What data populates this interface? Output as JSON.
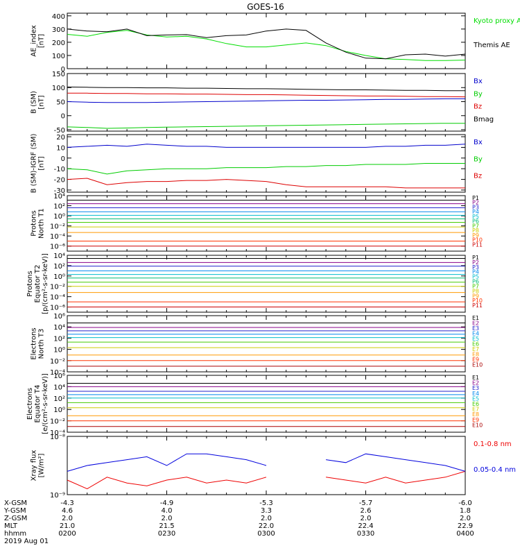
{
  "title": "GOES-16",
  "chart_data": [
    {
      "type": "line",
      "ylabel": [
        "AE_index",
        "[nT]"
      ],
      "yticks": [
        0,
        100,
        200,
        300,
        400
      ],
      "ylim": [
        0,
        420
      ],
      "x": [
        0,
        0.1,
        0.2,
        0.3,
        0.4,
        0.5,
        0.6,
        0.7,
        0.8,
        0.9,
        1.0,
        1.1,
        1.2,
        1.3,
        1.4,
        1.5,
        1.6,
        1.7,
        1.8,
        1.9,
        2.0
      ],
      "series": [
        {
          "name": "Kyoto proxy AE",
          "color": "#00dd00",
          "values": [
            260,
            245,
            275,
            290,
            255,
            240,
            245,
            225,
            190,
            165,
            165,
            180,
            195,
            175,
            130,
            100,
            75,
            70,
            62,
            62,
            65
          ]
        },
        {
          "name": "Themis AE",
          "color": "#000000",
          "values": [
            300,
            285,
            280,
            300,
            250,
            255,
            258,
            235,
            250,
            255,
            285,
            300,
            290,
            195,
            125,
            80,
            75,
            105,
            110,
            95,
            110
          ]
        }
      ]
    },
    {
      "type": "line",
      "ylabel": [
        "B (SM)",
        "[nT]"
      ],
      "yticks": [
        -50,
        0,
        50,
        100,
        150
      ],
      "ylim": [
        -55,
        150
      ],
      "x": [
        0,
        0.1,
        0.2,
        0.3,
        0.4,
        0.5,
        0.6,
        0.7,
        0.8,
        0.9,
        1.0,
        1.1,
        1.2,
        1.3,
        1.4,
        1.5,
        1.6,
        1.7,
        1.8,
        1.9,
        2.0
      ],
      "series": [
        {
          "name": "Bx",
          "color": "#0000cc",
          "values": [
            50,
            48,
            47,
            47,
            47,
            48,
            49,
            50,
            51,
            52,
            53,
            54,
            55,
            55,
            56,
            57,
            58,
            58,
            59,
            60,
            60
          ]
        },
        {
          "name": "By",
          "color": "#00cc00",
          "values": [
            -40,
            -42,
            -45,
            -44,
            -42,
            -41,
            -40,
            -39,
            -38,
            -37,
            -36,
            -35,
            -34,
            -33,
            -32,
            -31,
            -30,
            -29,
            -28,
            -27,
            -27
          ]
        },
        {
          "name": "Bz",
          "color": "#dd0000",
          "values": [
            80,
            80,
            79,
            79,
            78,
            78,
            77,
            77,
            76,
            75,
            75,
            74,
            73,
            72,
            71,
            70,
            70,
            69,
            68,
            68,
            67
          ]
        },
        {
          "name": "Bmag",
          "color": "#000000",
          "values": [
            102,
            101,
            100,
            100,
            99,
            99,
            98,
            98,
            97,
            96,
            96,
            95,
            94,
            93,
            92,
            92,
            91,
            90,
            90,
            89,
            89
          ]
        }
      ]
    },
    {
      "type": "line",
      "ylabel": [
        "B (SM)-IGRF (SM)",
        "[nT]"
      ],
      "yticks": [
        -30,
        -20,
        -10,
        0,
        10,
        20
      ],
      "ylim": [
        -32,
        22
      ],
      "x": [
        0,
        0.1,
        0.2,
        0.3,
        0.4,
        0.5,
        0.6,
        0.7,
        0.8,
        0.9,
        1.0,
        1.1,
        1.2,
        1.3,
        1.4,
        1.5,
        1.6,
        1.7,
        1.8,
        1.9,
        2.0
      ],
      "series": [
        {
          "name": "Bx",
          "color": "#0000cc",
          "values": [
            10,
            11,
            12,
            11,
            13,
            12,
            11,
            11,
            10,
            10,
            10,
            10,
            10,
            10,
            10,
            10,
            11,
            11,
            12,
            12,
            13
          ]
        },
        {
          "name": "By",
          "color": "#00cc00",
          "values": [
            -10,
            -11,
            -15,
            -12,
            -11,
            -10,
            -10,
            -10,
            -9,
            -9,
            -9,
            -8,
            -8,
            -7,
            -7,
            -6,
            -6,
            -6,
            -5,
            -5,
            -5
          ]
        },
        {
          "name": "Bz",
          "color": "#dd0000",
          "values": [
            -20,
            -19,
            -25,
            -23,
            -22,
            -22,
            -21,
            -21,
            -20,
            -21,
            -22,
            -25,
            -27,
            -27,
            -27,
            -27,
            -27,
            -28,
            -28,
            -28,
            -28
          ]
        }
      ]
    },
    {
      "type": "line",
      "ylog": true,
      "ylabel": [
        "Protons",
        "North T1"
      ],
      "yticks": [
        -6,
        -4,
        -2,
        0,
        2,
        4
      ],
      "ylim_log10": [
        -7,
        4
      ],
      "channels": [
        {
          "name": "P1",
          "color": "#000000",
          "log10": 3.1
        },
        {
          "name": "P2",
          "color": "#880088",
          "log10": 2.4
        },
        {
          "name": "P3",
          "color": "#2222cc",
          "log10": 1.6
        },
        {
          "name": "P4",
          "color": "#0088ee",
          "log10": 0.8
        },
        {
          "name": "P5",
          "color": "#00bbcc",
          "log10": 0.1
        },
        {
          "name": "P6",
          "color": "#00bb77",
          "log10": -0.6
        },
        {
          "name": "P7",
          "color": "#44cc00",
          "log10": -1.3
        },
        {
          "name": "P8",
          "color": "#cccc00",
          "log10": -2.2
        },
        {
          "name": "P9",
          "color": "#ff9900",
          "log10": -3.3
        },
        {
          "name": "P10",
          "color": "#ff3300",
          "log10": -5.0
        },
        {
          "name": "P11",
          "color": "#cc0000",
          "log10": -6.0
        }
      ]
    },
    {
      "type": "line",
      "ylog": true,
      "ylabel": [
        "Protons",
        "Equator T2",
        "[p/(cm²-s-sr-keV)]"
      ],
      "yticks": [
        -6,
        -4,
        -2,
        0,
        2,
        4
      ],
      "ylim_log10": [
        -7,
        4
      ],
      "channels": [
        {
          "name": "P1",
          "color": "#000000",
          "log10": 3.4
        },
        {
          "name": "P2",
          "color": "#880088",
          "log10": 2.6
        },
        {
          "name": "P3",
          "color": "#2222cc",
          "log10": 1.9
        },
        {
          "name": "P4",
          "color": "#0088ee",
          "log10": 1.0
        },
        {
          "name": "P5",
          "color": "#00bbcc",
          "log10": 0.3
        },
        {
          "name": "P6",
          "color": "#00bb77",
          "log10": -0.4
        },
        {
          "name": "P7",
          "color": "#44cc00",
          "log10": -1.2
        },
        {
          "name": "P8",
          "color": "#cccc00",
          "log10": -2.0
        },
        {
          "name": "P9",
          "color": "#ff9900",
          "log10": -3.2
        },
        {
          "name": "P10",
          "color": "#ff3300",
          "log10": -5.0
        },
        {
          "name": "P11",
          "color": "#cc0000",
          "log10": -6.0
        }
      ]
    },
    {
      "type": "line",
      "ylog": true,
      "ylabel": [
        "Electrons",
        "North T3"
      ],
      "yticks": [
        -4,
        -2,
        0,
        2,
        4,
        6
      ],
      "ylim_log10": [
        -4,
        6
      ],
      "channels": [
        {
          "name": "E1",
          "color": "#000000",
          "log10": 4.7
        },
        {
          "name": "E2",
          "color": "#880088",
          "log10": 3.9
        },
        {
          "name": "E3",
          "color": "#2222cc",
          "log10": 3.3
        },
        {
          "name": "E4",
          "color": "#0088ee",
          "log10": 2.7
        },
        {
          "name": "E5",
          "color": "#00bbcc",
          "log10": 2.1
        },
        {
          "name": "E6",
          "color": "#44cc00",
          "log10": 1.3
        },
        {
          "name": "E7",
          "color": "#cccc00",
          "log10": 0.3
        },
        {
          "name": "E8",
          "color": "#ff9900",
          "log10": -1.0
        },
        {
          "name": "E9",
          "color": "#ff3300",
          "log10": -2.0
        },
        {
          "name": "E10",
          "color": "#aa0000",
          "log10": -3.0
        }
      ]
    },
    {
      "type": "line",
      "ylog": true,
      "ylabel": [
        "Electrons",
        "Equator T4",
        "[e/(cm²-s-sr-keV)]"
      ],
      "yticks": [
        -4,
        -2,
        0,
        2,
        4,
        6
      ],
      "ylim_log10": [
        -4,
        6
      ],
      "channels": [
        {
          "name": "E1",
          "color": "#000000",
          "log10": 4.6
        },
        {
          "name": "E2",
          "color": "#880088",
          "log10": 4.0
        },
        {
          "name": "E3",
          "color": "#2222cc",
          "log10": 3.2
        },
        {
          "name": "E4",
          "color": "#0088ee",
          "log10": 2.6
        },
        {
          "name": "E5",
          "color": "#00bbcc",
          "log10": 2.0
        },
        {
          "name": "E6",
          "color": "#44cc00",
          "log10": 1.2
        },
        {
          "name": "E7",
          "color": "#cccc00",
          "log10": 0.3
        },
        {
          "name": "E8",
          "color": "#ff9900",
          "log10": -1.1
        },
        {
          "name": "E9",
          "color": "#ff3300",
          "log10": -2.0
        },
        {
          "name": "E10",
          "color": "#aa0000",
          "log10": -3.0
        }
      ]
    },
    {
      "type": "line",
      "ylog": true,
      "ylabel": [
        "Xray flux",
        "[W/m²]"
      ],
      "yticks": [
        -9,
        -8
      ],
      "ylim_log10": [
        -9,
        -8
      ],
      "x": [
        0,
        0.1,
        0.2,
        0.3,
        0.4,
        0.5,
        0.6,
        0.7,
        0.8,
        0.9,
        1.0,
        1.1,
        1.2,
        1.3,
        1.4,
        1.5,
        1.6,
        1.7,
        1.8,
        1.9,
        2.0
      ],
      "series": [
        {
          "name": "0.1-0.8 nm",
          "color": "#ee0000",
          "log10": [
            -8.75,
            -8.9,
            -8.7,
            -8.8,
            -8.85,
            -8.75,
            -8.7,
            -8.8,
            -8.75,
            -8.8,
            -8.7,
            null,
            null,
            -8.7,
            -8.75,
            -8.8,
            -8.7,
            -8.8,
            -8.75,
            -8.7,
            -8.6
          ]
        },
        {
          "name": "0.05-0.4 nm",
          "color": "#0000dd",
          "log10": [
            -8.6,
            -8.5,
            -8.45,
            -8.4,
            -8.35,
            -8.5,
            -8.3,
            -8.3,
            -8.35,
            -8.4,
            -8.5,
            null,
            null,
            -8.4,
            -8.45,
            -8.3,
            -8.35,
            -8.4,
            -8.45,
            -8.5,
            -8.6
          ]
        }
      ]
    }
  ],
  "x_axis": {
    "rows": [
      {
        "label": "X-GSM",
        "values": [
          "-4.3",
          "-4.9",
          "-5.3",
          "-5.7",
          "-6.0"
        ]
      },
      {
        "label": "Y-GSM",
        "values": [
          "4.6",
          "4.0",
          "3.3",
          "2.6",
          "1.8"
        ]
      },
      {
        "label": "Z-GSM",
        "values": [
          "2.0",
          "2.0",
          "2.0",
          "2.0",
          "2.0"
        ]
      },
      {
        "label": "MLT",
        "values": [
          "21.0",
          "21.5",
          "22.0",
          "22.4",
          "22.9"
        ]
      },
      {
        "label": "hhmm",
        "values": [
          "0200",
          "0230",
          "0300",
          "0330",
          "0400"
        ]
      }
    ],
    "date": "2019 Aug 01"
  },
  "colors": {
    "axis": "#000000",
    "background": "#ffffff"
  }
}
